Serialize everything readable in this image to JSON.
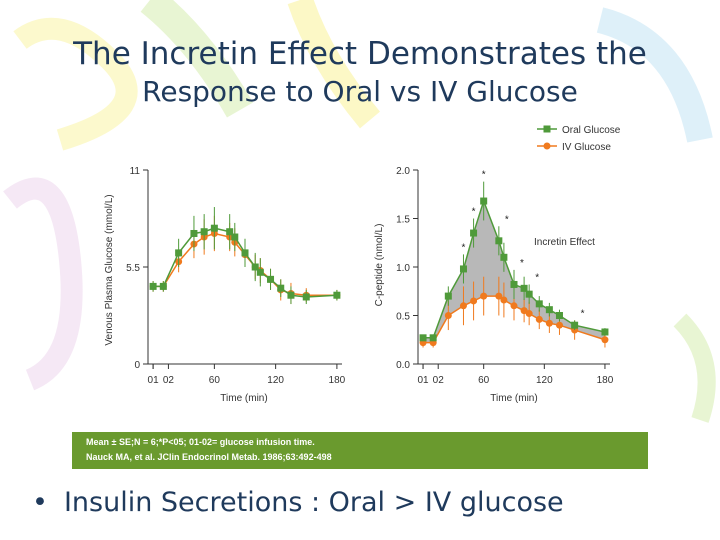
{
  "slide": {
    "title_line1": "The Incretin Effect Demonstrates the",
    "title_line2": "Response to Oral vs IV Glucose",
    "footnote_line1": "Mean ± SE;N = 6;*P<05; 01-02= glucose infusion time.",
    "footnote_line2": "Nauck MA, et al. JClin Endocrinol Metab. 1986;63:492-498",
    "bullet_text": "Insulin Secretions : Oral > IV glucose",
    "bullet_symbol": "•"
  },
  "colors": {
    "oral": "#4f9a3a",
    "iv": "#f07a1e",
    "title": "#1f3a5c",
    "fill": "#b0b0b0",
    "footer_bg": "#6a9a2e"
  },
  "legend": {
    "oral_label": "Oral Glucose",
    "iv_label": "IV Glucose"
  },
  "chart_data": [
    {
      "type": "line",
      "ylabel": "Venous Plasma Glucose (mmol/L)",
      "xlabel": "Time (min)",
      "ylim": [
        0,
        11
      ],
      "xlim": [
        -5,
        185
      ],
      "yticks": [
        "0",
        "5.5",
        "11"
      ],
      "ytick_values": [
        0,
        5.5,
        11
      ],
      "xticks": [
        "0",
        "60",
        "120",
        "180"
      ],
      "xtick_values": [
        0,
        60,
        120,
        180
      ],
      "infusion_ticks": [
        {
          "x": 0,
          "label": "01"
        },
        {
          "x": 15,
          "label": "02"
        }
      ],
      "series": [
        {
          "name": "Oral Glucose",
          "color": "#4f9a3a",
          "x": [
            0,
            10,
            25,
            40,
            50,
            60,
            75,
            80,
            90,
            100,
            105,
            115,
            125,
            135,
            150,
            180
          ],
          "y": [
            4.4,
            4.4,
            6.3,
            7.4,
            7.5,
            7.7,
            7.5,
            7.2,
            6.3,
            5.5,
            5.2,
            4.8,
            4.3,
            3.9,
            3.8,
            3.9
          ],
          "err": [
            0.3,
            0.3,
            0.8,
            1.0,
            1.0,
            1.2,
            1.0,
            0.8,
            0.8,
            0.8,
            0.8,
            0.6,
            0.5,
            0.5,
            0.4,
            0.3
          ]
        },
        {
          "name": "IV Glucose",
          "color": "#f07a1e",
          "x": [
            0,
            10,
            25,
            40,
            50,
            60,
            75,
            80,
            90,
            100,
            105,
            115,
            125,
            135,
            150,
            180
          ],
          "y": [
            4.4,
            4.4,
            5.8,
            6.8,
            7.2,
            7.4,
            7.2,
            6.9,
            6.2,
            5.5,
            5.3,
            4.8,
            4.2,
            4.0,
            3.9,
            3.9
          ],
          "err": [
            0.3,
            0.3,
            0.6,
            0.8,
            1.0,
            1.0,
            0.8,
            0.8,
            0.7,
            0.7,
            0.7,
            0.6,
            0.6,
            0.6,
            0.4,
            0.3
          ]
        }
      ]
    },
    {
      "type": "area",
      "ylabel": "C-peptide (nmol/L)",
      "xlabel": "Time (min)",
      "ylim": [
        0,
        2.0
      ],
      "xlim": [
        -5,
        185
      ],
      "yticks": [
        "0.0",
        "0.5",
        "1.0",
        "1.5",
        "2.0"
      ],
      "ytick_values": [
        0,
        0.5,
        1.0,
        1.5,
        2.0
      ],
      "xticks": [
        "0",
        "60",
        "120",
        "180"
      ],
      "xtick_values": [
        0,
        60,
        120,
        180
      ],
      "infusion_ticks": [
        {
          "x": 0,
          "label": "01"
        },
        {
          "x": 15,
          "label": "02"
        }
      ],
      "annotation": "Incretin Effect",
      "significance_marker": "*",
      "significant_x": [
        40,
        50,
        60,
        75,
        90,
        105,
        150
      ],
      "series": [
        {
          "name": "Oral Glucose",
          "color": "#4f9a3a",
          "x": [
            0,
            10,
            25,
            40,
            50,
            60,
            75,
            80,
            90,
            100,
            105,
            115,
            125,
            135,
            150,
            180
          ],
          "y": [
            0.27,
            0.27,
            0.7,
            0.98,
            1.35,
            1.68,
            1.27,
            1.1,
            0.82,
            0.78,
            0.72,
            0.62,
            0.56,
            0.5,
            0.4,
            0.33
          ],
          "err": [
            0.03,
            0.03,
            0.1,
            0.15,
            0.15,
            0.2,
            0.15,
            0.15,
            0.15,
            0.12,
            0.1,
            0.08,
            0.07,
            0.06,
            0.05,
            0.04
          ]
        },
        {
          "name": "IV Glucose",
          "color": "#f07a1e",
          "x": [
            0,
            10,
            25,
            40,
            50,
            60,
            75,
            80,
            90,
            100,
            105,
            115,
            125,
            135,
            150,
            180
          ],
          "y": [
            0.22,
            0.22,
            0.5,
            0.6,
            0.65,
            0.7,
            0.7,
            0.66,
            0.6,
            0.55,
            0.52,
            0.46,
            0.42,
            0.4,
            0.35,
            0.25
          ],
          "err": [
            0.05,
            0.05,
            0.15,
            0.2,
            0.2,
            0.2,
            0.2,
            0.18,
            0.15,
            0.12,
            0.12,
            0.1,
            0.1,
            0.1,
            0.1,
            0.08
          ]
        }
      ]
    }
  ]
}
